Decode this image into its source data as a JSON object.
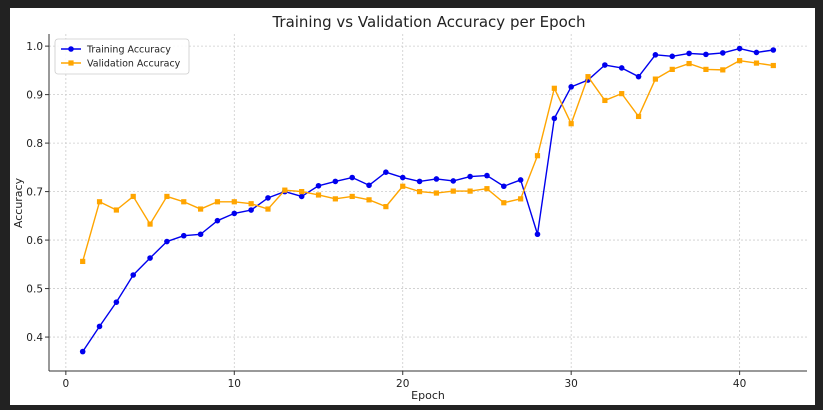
{
  "chart_data": {
    "type": "line",
    "title": "Training vs Validation Accuracy per Epoch",
    "xlabel": "Epoch",
    "ylabel": "Accuracy",
    "xlim": [
      -1,
      44
    ],
    "ylim": [
      0.33,
      1.025
    ],
    "xticks": [
      0,
      10,
      20,
      30,
      40
    ],
    "yticks": [
      0.4,
      0.5,
      0.6,
      0.7,
      0.8,
      0.9,
      1.0
    ],
    "grid": true,
    "legend_position": "top-left",
    "x": [
      1,
      2,
      3,
      4,
      5,
      6,
      7,
      8,
      9,
      10,
      11,
      12,
      13,
      14,
      15,
      16,
      17,
      18,
      19,
      20,
      21,
      22,
      23,
      24,
      25,
      26,
      27,
      28,
      29,
      30,
      31,
      32,
      33,
      34,
      35,
      36,
      37,
      38,
      39,
      40,
      41,
      42
    ],
    "series": [
      {
        "name": "Training Accuracy",
        "color": "#0000ee",
        "marker": "circle",
        "values": [
          0.37,
          0.422,
          0.472,
          0.528,
          0.563,
          0.597,
          0.609,
          0.612,
          0.64,
          0.655,
          0.662,
          0.687,
          0.7,
          0.69,
          0.712,
          0.721,
          0.729,
          0.713,
          0.74,
          0.729,
          0.721,
          0.726,
          0.722,
          0.731,
          0.733,
          0.711,
          0.724,
          0.612,
          0.851,
          0.916,
          0.93,
          0.961,
          0.955,
          0.937,
          0.982,
          0.979,
          0.985,
          0.983,
          0.986,
          0.995,
          0.987,
          0.992
        ]
      },
      {
        "name": "Validation Accuracy",
        "color": "#ffa500",
        "marker": "square",
        "values": [
          0.556,
          0.679,
          0.662,
          0.69,
          0.633,
          0.69,
          0.679,
          0.664,
          0.679,
          0.679,
          0.675,
          0.664,
          0.703,
          0.7,
          0.693,
          0.685,
          0.69,
          0.683,
          0.669,
          0.711,
          0.7,
          0.697,
          0.701,
          0.701,
          0.706,
          0.677,
          0.685,
          0.774,
          0.913,
          0.84,
          0.937,
          0.888,
          0.902,
          0.855,
          0.932,
          0.952,
          0.964,
          0.952,
          0.951,
          0.97,
          0.965,
          0.96
        ]
      }
    ]
  }
}
